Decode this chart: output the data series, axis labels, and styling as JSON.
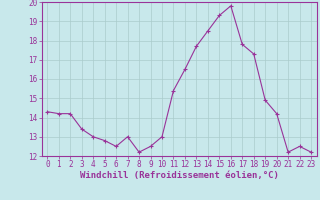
{
  "x": [
    0,
    1,
    2,
    3,
    4,
    5,
    6,
    7,
    8,
    9,
    10,
    11,
    12,
    13,
    14,
    15,
    16,
    17,
    18,
    19,
    20,
    21,
    22,
    23
  ],
  "y": [
    14.3,
    14.2,
    14.2,
    13.4,
    13.0,
    12.8,
    12.5,
    13.0,
    12.2,
    12.5,
    13.0,
    15.4,
    16.5,
    17.7,
    18.5,
    19.3,
    19.8,
    17.8,
    17.3,
    14.9,
    14.2,
    12.2,
    12.5,
    12.2
  ],
  "line_color": "#993399",
  "marker_color": "#993399",
  "bg_color": "#c8e8eb",
  "grid_color": "#aacccc",
  "xlabel": "Windchill (Refroidissement éolien,°C)",
  "xlabel_color": "#993399",
  "tick_color": "#993399",
  "spine_color": "#993399",
  "ylim": [
    12,
    20
  ],
  "xlim": [
    -0.5,
    23.5
  ],
  "yticks": [
    12,
    13,
    14,
    15,
    16,
    17,
    18,
    19,
    20
  ],
  "xticks": [
    0,
    1,
    2,
    3,
    4,
    5,
    6,
    7,
    8,
    9,
    10,
    11,
    12,
    13,
    14,
    15,
    16,
    17,
    18,
    19,
    20,
    21,
    22,
    23
  ],
  "tick_fontsize": 5.5,
  "xlabel_fontsize": 6.5,
  "linewidth": 0.8,
  "markersize": 2.2
}
